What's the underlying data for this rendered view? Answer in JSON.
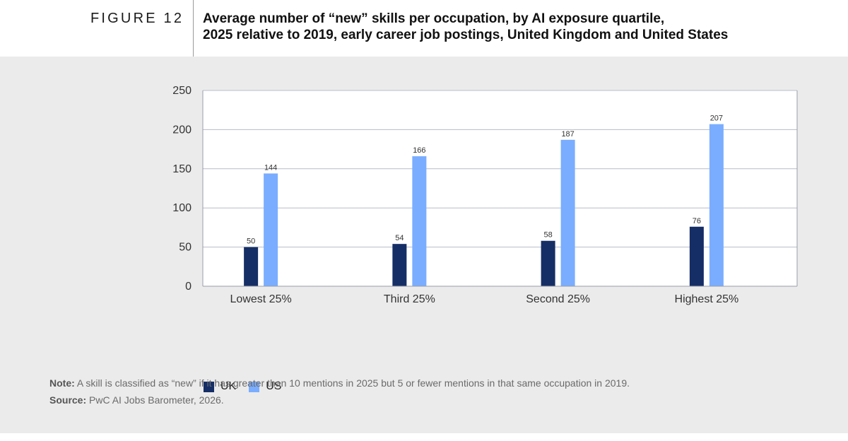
{
  "header": {
    "figure_label": "FIGURE 12",
    "title_line1": "Average number of “new” skills per occupation, by AI exposure quartile,",
    "title_line2": "2025 relative to 2019, early career job postings, United Kingdom and United States"
  },
  "colors": {
    "uk": "#152e66",
    "us": "#7aadff",
    "grid": "#b8bcc8",
    "panel": "#ebebeb",
    "plot_bg": "#ffffff"
  },
  "chart_data": {
    "type": "bar",
    "categories": [
      "Lowest 25%",
      "Third 25%",
      "Second 25%",
      "Highest 25%"
    ],
    "series": [
      {
        "name": "UK",
        "values": [
          50,
          54,
          58,
          76
        ]
      },
      {
        "name": "US",
        "values": [
          144,
          166,
          187,
          207
        ]
      }
    ],
    "yticks": [
      "0",
      "50",
      "100",
      "150",
      "200",
      "250"
    ],
    "ylim": [
      0,
      250
    ],
    "grid": true,
    "legend_position": "bottom-left"
  },
  "legend": {
    "uk_label": "UK",
    "us_label": "US"
  },
  "notes": {
    "note_label": "Note:",
    "note_text": "A skill is classified as “new” if it has greater than 10 mentions in 2025 but 5 or fewer mentions in that same occupation in 2019.",
    "source_label": "Source:",
    "source_text": "PwC AI Jobs Barometer, 2026."
  }
}
